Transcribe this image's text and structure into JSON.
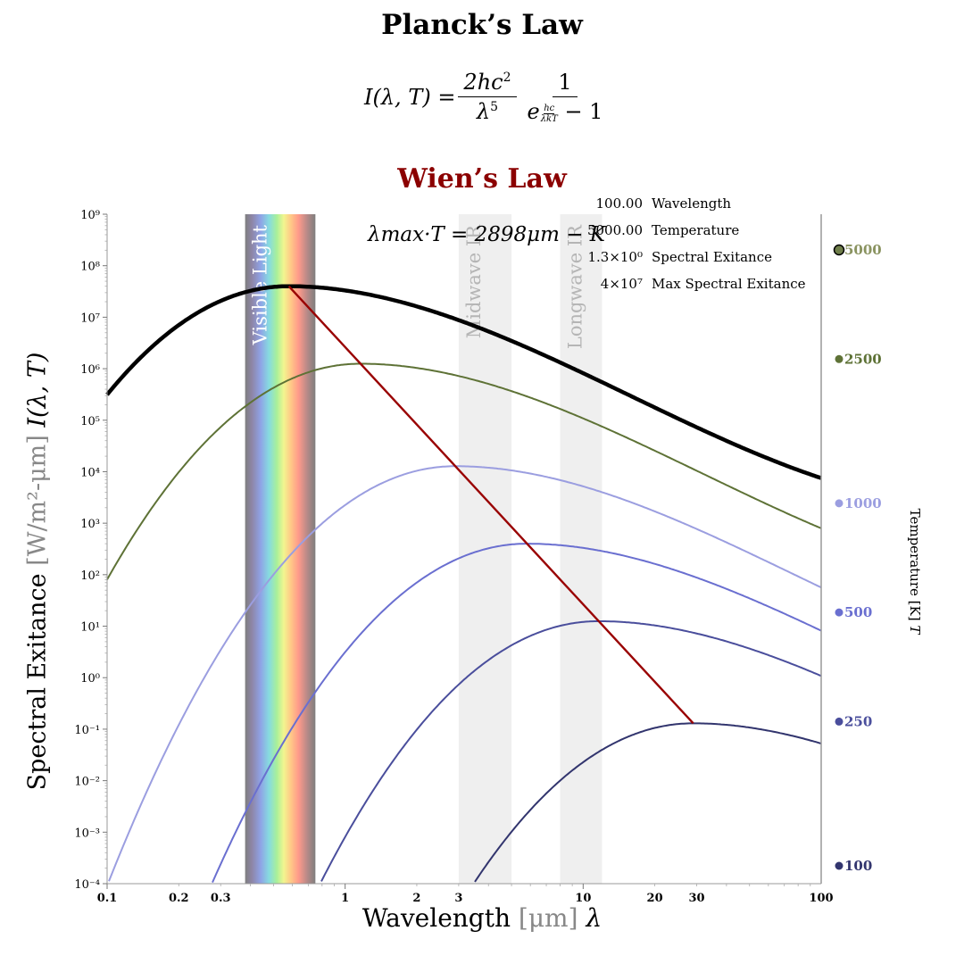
{
  "title": "Planck’s Law",
  "formula": {
    "lhs": "I(λ, T) =",
    "frac1_num": "2hc",
    "frac1_num_sup": "2",
    "frac1_den": "λ",
    "frac1_den_sup": "5",
    "frac2_num": "1",
    "frac2_den_base": "e",
    "frac2_exp_num": "hc",
    "frac2_exp_den": "λkT",
    "frac2_den_tail": "− 1"
  },
  "wien_title": "Wien’s Law",
  "wien_formula": "λmax·T = 2898μm − K",
  "readout": [
    {
      "value": "100.00",
      "label": "Wavelength"
    },
    {
      "value": "5000.00",
      "label": "Temperature"
    },
    {
      "value": "1.3×10⁰",
      "label": "Spectral Exitance"
    },
    {
      "value": "4×10⁷",
      "label": "Max Spectral Exitance"
    }
  ],
  "bands": [
    {
      "label": "Visible Light",
      "from": 0.38,
      "to": 0.75
    },
    {
      "label": "Midwave IR",
      "from": 3,
      "to": 5
    },
    {
      "label": "Longwave IR",
      "from": 8,
      "to": 12
    }
  ],
  "axis": {
    "ylabel_text": "Spectral Exitance",
    "ylabel_units": "[W/m²-μm]",
    "ylabel_symbol": "I(λ, T)",
    "xlabel_text": "Wavelength",
    "xlabel_units": "[μm]",
    "xlabel_symbol": "λ",
    "tlabel_text": "Temperature [K]",
    "tlabel_symbol": "T"
  },
  "chart_data": {
    "type": "line",
    "x_scale": "log",
    "y_scale": "log",
    "xlim": [
      0.1,
      100
    ],
    "ylim": [
      0.0001,
      1000000000
    ],
    "x_tick_labels": [
      "0.1",
      "0.2",
      "0.3",
      "1",
      "2",
      "3",
      "10",
      "20",
      "30",
      "100"
    ],
    "y_tick_labels": [
      "10⁻⁴",
      "10⁻³",
      "10⁻²",
      "10⁻¹",
      "10⁰",
      "10¹",
      "10²",
      "10³",
      "10⁴",
      "10⁵",
      "10⁶",
      "10⁷",
      "10⁸",
      "10⁹"
    ],
    "series": [
      {
        "name": "5000",
        "temperature": 5000,
        "color": "#000000",
        "peak_wavelength": 0.58,
        "peak_exitance": 40000000
      },
      {
        "name": "2500",
        "temperature": 2500,
        "color": "#5e7236",
        "peak_wavelength": 1.16,
        "peak_exitance": 1250000
      },
      {
        "name": "1000",
        "temperature": 1000,
        "color": "#9b9ee0",
        "peak_wavelength": 2.9,
        "peak_exitance": 12800
      },
      {
        "name": "500",
        "temperature": 500,
        "color": "#6a6fd0",
        "peak_wavelength": 5.8,
        "peak_exitance": 400
      },
      {
        "name": "250",
        "temperature": 250,
        "color": "#4a4e9c",
        "peak_wavelength": 11.6,
        "peak_exitance": 12.5
      },
      {
        "name": "100",
        "temperature": 100,
        "color": "#32356e",
        "peak_wavelength": 29,
        "peak_exitance": 0.13
      }
    ],
    "wien_line": {
      "color": "#990000",
      "from": [
        0.58,
        40000000
      ],
      "to": [
        29,
        0.13
      ]
    },
    "temperature_scale": {
      "values": [
        5000,
        2500,
        1000,
        500,
        250,
        100
      ],
      "selected": 5000
    },
    "grid": false
  }
}
